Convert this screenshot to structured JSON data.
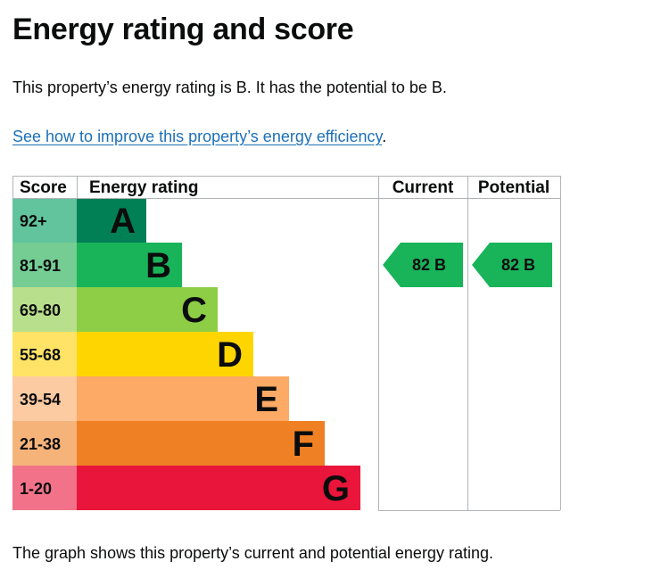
{
  "heading": "Energy rating and score",
  "summary": "This property’s energy rating is B. It has the potential to be B.",
  "link": {
    "text": "See how to improve this property’s energy efficiency",
    "suffix": "."
  },
  "footnote": "The graph shows this property’s current and potential energy rating.",
  "chart_data": {
    "type": "bar",
    "columns": {
      "score": "Score",
      "rating": "Energy rating",
      "current": "Current",
      "potential": "Potential"
    },
    "bands": [
      {
        "letter": "A",
        "range": "92+",
        "color": "#008054",
        "score_color": "#62c49d"
      },
      {
        "letter": "B",
        "range": "81-91",
        "color": "#19b459",
        "score_color": "#75cd94"
      },
      {
        "letter": "C",
        "range": "69-80",
        "color": "#8dce46",
        "score_color": "#b8df8c"
      },
      {
        "letter": "D",
        "range": "55-68",
        "color": "#ffd500",
        "score_color": "#ffe366"
      },
      {
        "letter": "E",
        "range": "39-54",
        "color": "#fcaa65",
        "score_color": "#fdcba2"
      },
      {
        "letter": "F",
        "range": "21-38",
        "color": "#ef8023",
        "score_color": "#f5b37a"
      },
      {
        "letter": "G",
        "range": "1-20",
        "color": "#e9153b",
        "score_color": "#f27389"
      }
    ],
    "current": {
      "score": 82,
      "letter": "B",
      "color": "#19b459"
    },
    "potential": {
      "score": 82,
      "letter": "B",
      "color": "#19b459"
    }
  }
}
